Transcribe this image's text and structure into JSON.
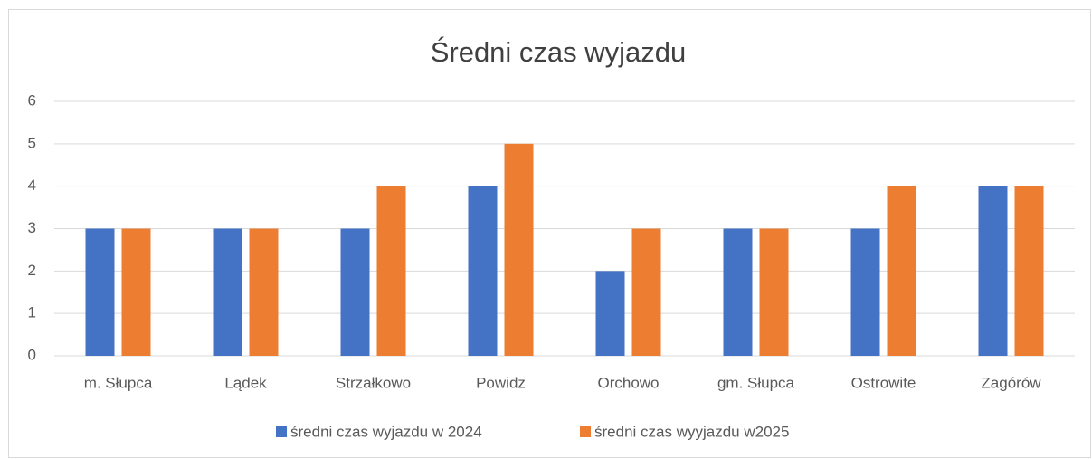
{
  "chart_data": {
    "type": "bar",
    "title": "Średni czas wyjazdu",
    "categories": [
      "m. Słupca",
      "Lądek",
      "Strzałkowo",
      "Powidz",
      "Orchowo",
      "gm. Słupca",
      "Ostrowite",
      "Zagórów"
    ],
    "series": [
      {
        "name": "średni czas wyjazdu w 2024",
        "color": "#4472c4",
        "values": [
          3,
          3,
          3,
          4,
          2,
          3,
          3,
          4
        ]
      },
      {
        "name": "średni czas wyyjazdu w2025",
        "color": "#ed7d31",
        "values": [
          3,
          3,
          4,
          5,
          3,
          3,
          4,
          4
        ]
      }
    ],
    "ylim": [
      0,
      6
    ],
    "yticks": [
      0,
      1,
      2,
      3,
      4,
      5,
      6
    ],
    "grid": true,
    "legend": "bottom"
  }
}
